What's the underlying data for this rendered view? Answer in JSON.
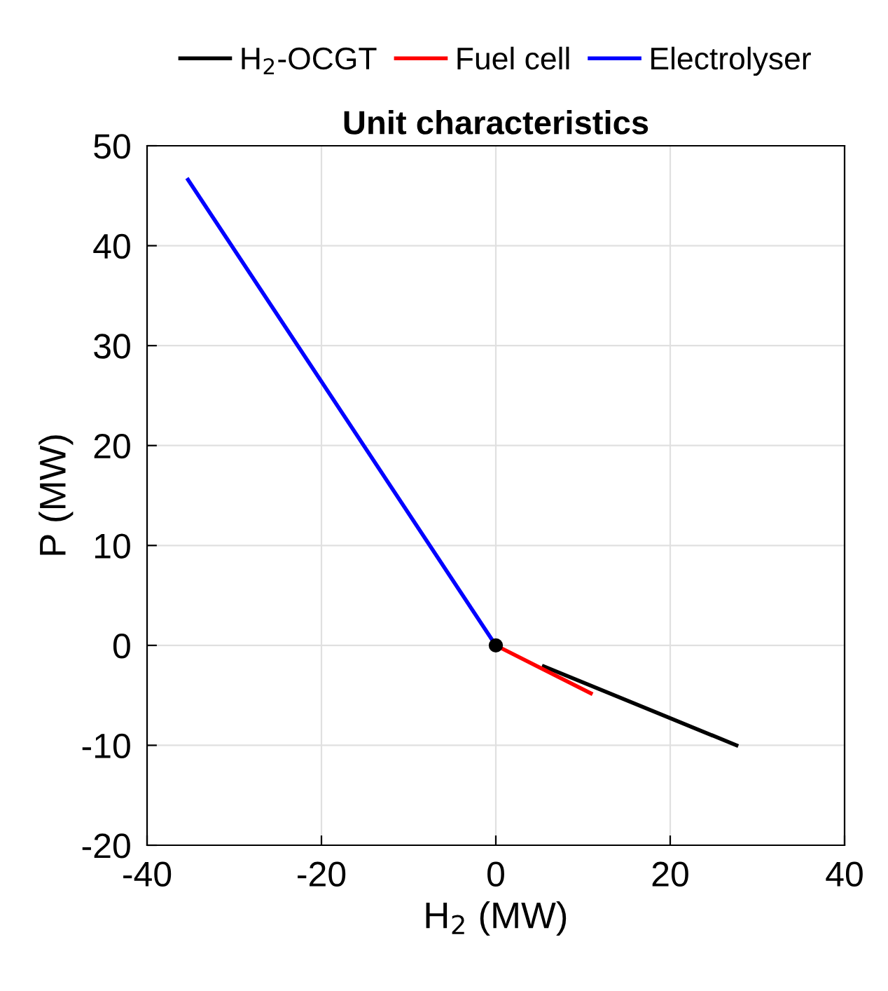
{
  "chart_data": {
    "type": "line",
    "title": "Unit characteristics",
    "xlabel": "H$_{2}$ (MW)",
    "ylabel": "P (MW)",
    "xlim": [
      -40,
      40
    ],
    "xticks": [
      -40,
      -20,
      0,
      20,
      40
    ],
    "ylim": [
      -20,
      50
    ],
    "yticks": [
      -20,
      -10,
      0,
      10,
      20,
      30,
      40,
      50
    ],
    "grid": true,
    "legend": "top",
    "line_style": "solid",
    "series": [
      {
        "name": "H$_{2}$-OCGT",
        "color": "#000000",
        "x": [
          5.5,
          27.6
        ],
        "values": [
          -2.1,
          -10
        ]
      },
      {
        "name": "Fuel cell",
        "color": "#ff0000",
        "x": [
          0,
          10.9
        ],
        "values": [
          0,
          -4.8
        ]
      },
      {
        "name": "Electrolyser",
        "color": "#0000ff",
        "x": [
          0,
          -35.3
        ],
        "values": [
          0,
          46.6
        ]
      },
      {
        "type": "scatter",
        "marker": "circle",
        "color": "#000000",
        "x": [
          0
        ],
        "values": [
          0
        ]
      }
    ]
  }
}
